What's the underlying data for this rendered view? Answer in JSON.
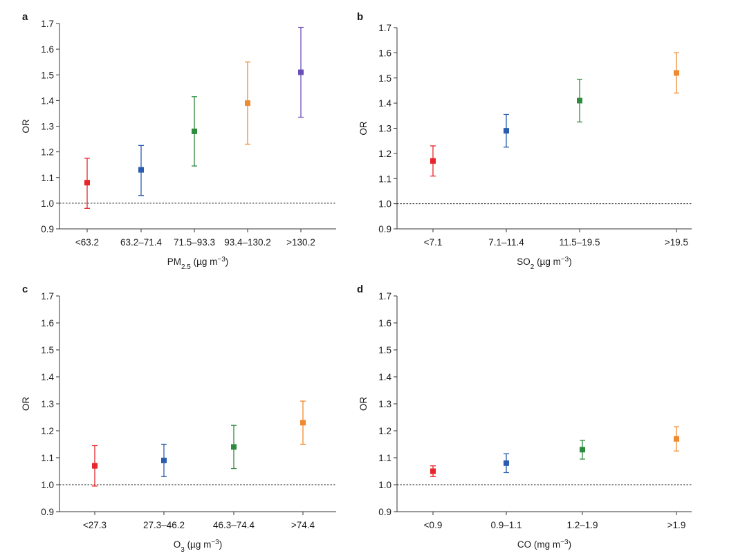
{
  "chart_data": [
    {
      "panel": "a",
      "type": "scatter",
      "subtype": "point-with-error-bars",
      "title": "",
      "xlabel": {
        "main": "PM",
        "sub": "2.5",
        "unit_pre": " (µg m",
        "sup": "−3",
        "unit_post": ")"
      },
      "ylabel": "OR",
      "ylim": [
        0.9,
        1.7
      ],
      "yticks": [
        "0.9",
        "1.0",
        "1.1",
        "1.2",
        "1.3",
        "1.4",
        "1.5",
        "1.6",
        "1.7"
      ],
      "reference_line": 1.0,
      "categories": [
        "<63.2",
        "63.2–71.4",
        "71.5–93.3",
        "93.4–130.2",
        ">130.2"
      ],
      "values": [
        1.08,
        1.13,
        1.28,
        1.39,
        1.51
      ],
      "lower": [
        0.98,
        1.03,
        1.145,
        1.23,
        1.335
      ],
      "upper": [
        1.175,
        1.225,
        1.415,
        1.55,
        1.685
      ],
      "colors": [
        "#e8252a",
        "#2a5db0",
        "#2e8b3d",
        "#f08a30",
        "#6a4fb8"
      ]
    },
    {
      "panel": "b",
      "type": "scatter",
      "subtype": "point-with-error-bars",
      "title": "",
      "xlabel": {
        "main": "SO",
        "sub": "2",
        "unit_pre": " (µg m",
        "sup": "−3",
        "unit_post": ")"
      },
      "ylabel": "OR",
      "ylim": [
        0.9,
        1.7
      ],
      "yticks": [
        "0.9",
        "1.0",
        "1.1",
        "1.2",
        "1.3",
        "1.4",
        "1.5",
        "1.6",
        "1.7"
      ],
      "reference_line": 1.0,
      "categories": [
        "<7.1",
        "7.1–11.4",
        "11.5–19.5",
        ">19.5"
      ],
      "values": [
        1.17,
        1.29,
        1.41,
        1.52
      ],
      "lower": [
        1.11,
        1.225,
        1.325,
        1.44
      ],
      "upper": [
        1.23,
        1.355,
        1.495,
        1.6
      ],
      "colors": [
        "#e8252a",
        "#2a5db0",
        "#2e8b3d",
        "#f08a30"
      ]
    },
    {
      "panel": "c",
      "type": "scatter",
      "subtype": "point-with-error-bars",
      "title": "",
      "xlabel": {
        "main": "O",
        "sub": "3",
        "unit_pre": " (µg m",
        "sup": "−3",
        "unit_post": ")"
      },
      "ylabel": "OR",
      "ylim": [
        0.9,
        1.7
      ],
      "yticks": [
        "0.9",
        "1.0",
        "1.1",
        "1.2",
        "1.3",
        "1.4",
        "1.5",
        "1.6",
        "1.7"
      ],
      "reference_line": 1.0,
      "categories": [
        "<27.3",
        "27.3–46.2",
        "46.3–74.4",
        ">74.4"
      ],
      "values": [
        1.07,
        1.09,
        1.14,
        1.23
      ],
      "lower": [
        0.995,
        1.03,
        1.06,
        1.15
      ],
      "upper": [
        1.145,
        1.15,
        1.22,
        1.31
      ],
      "colors": [
        "#e8252a",
        "#2a5db0",
        "#2e8b3d",
        "#f08a30"
      ]
    },
    {
      "panel": "d",
      "type": "scatter",
      "subtype": "point-with-error-bars",
      "title": "",
      "xlabel": {
        "main": "CO",
        "sub": "",
        "unit_pre": " (mg m",
        "sup": "−3",
        "unit_post": ")"
      },
      "ylabel": "OR",
      "ylim": [
        0.9,
        1.7
      ],
      "yticks": [
        "0.9",
        "1.0",
        "1.1",
        "1.2",
        "1.3",
        "1.4",
        "1.5",
        "1.6",
        "1.7"
      ],
      "reference_line": 1.0,
      "categories": [
        "<0.9",
        "0.9–1.1",
        "1.2–1.9",
        ">1.9"
      ],
      "values": [
        1.05,
        1.08,
        1.13,
        1.17
      ],
      "lower": [
        1.03,
        1.045,
        1.095,
        1.125
      ],
      "upper": [
        1.07,
        1.115,
        1.165,
        1.215
      ],
      "colors": [
        "#e8252a",
        "#2a5db0",
        "#2e8b3d",
        "#f08a30"
      ]
    }
  ]
}
